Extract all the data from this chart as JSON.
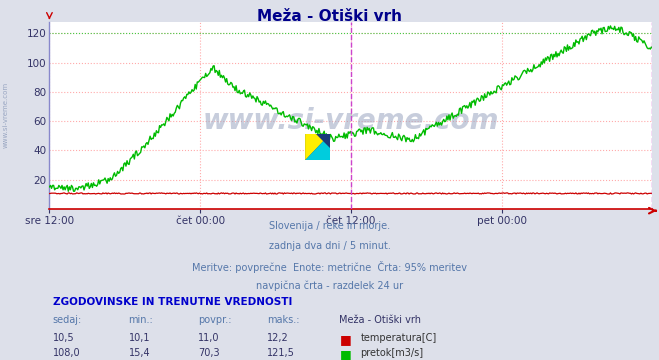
{
  "title": "Meža - Otiški vrh",
  "background_color": "#dde0ea",
  "plot_bg_color": "#ffffff",
  "grid_color": "#ffaaaa",
  "grid_color_v": "#ddaadd",
  "x_tick_labels": [
    "sre 12:00",
    "čet 00:00",
    "čet 12:00",
    "pet 00:00"
  ],
  "x_tick_positions": [
    0.0,
    0.25,
    0.5,
    0.75
  ],
  "y_ticks": [
    20,
    40,
    60,
    80,
    100,
    120
  ],
  "ylim": [
    0,
    128
  ],
  "xlim": [
    0.0,
    1.0
  ],
  "temp_color": "#cc0000",
  "flow_color": "#00bb00",
  "vline_color": "#cc44cc",
  "vline_x": 0.5,
  "border_color": "#8888dd",
  "subtitle_lines": [
    "Slovenija / reke in morje.",
    "zadnja dva dni / 5 minut.",
    "Meritve: povprečne  Enote: metrične  Črta: 95% meritev",
    "navpična črta - razdelek 24 ur"
  ],
  "table_header": "ZGODOVINSKE IN TRENUTNE VREDNOSTI",
  "table_cols": [
    "sedaj:",
    "min.:",
    "povpr.:",
    "maks.:",
    "Meža - Otiški vrh"
  ],
  "table_row1": [
    "10,5",
    "10,1",
    "11,0",
    "12,2"
  ],
  "table_row2": [
    "108,0",
    "15,4",
    "70,3",
    "121,5"
  ],
  "legend_temp": "temperatura[C]",
  "legend_flow": "pretok[m3/s]",
  "watermark": "www.si-vreme.com",
  "side_label": "www.si-vreme.com"
}
